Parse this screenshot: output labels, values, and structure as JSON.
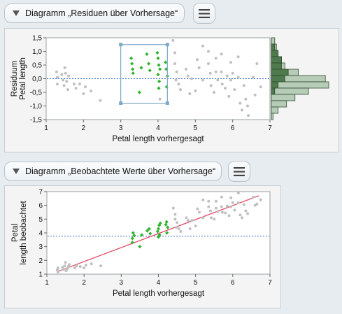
{
  "top": {
    "title": "Diagramm „Residuen über Vorhersage“",
    "menu_icon": "hamburger-icon",
    "collapse_icon": "triangle-down-icon"
  },
  "bottom": {
    "title": "Diagramm „Beobachtete Werte über Vorhersage“",
    "menu_icon": "hamburger-icon",
    "collapse_icon": "triangle-down-icon"
  },
  "colors": {
    "selected": "#2db52d",
    "unselected": "#c0c0c0",
    "fit_line": "#e0506a",
    "reference_line": "#3a6fc9",
    "brush": "#7ea8c8",
    "hist_fill": "#b6ccb6",
    "hist_selected": "#4e7a4e"
  },
  "chart_data": [
    {
      "type": "scatter",
      "title": "",
      "xlabel": "Petal length vorhergesagt",
      "ylabel": "Residuum Petal length",
      "xlim": [
        1,
        7
      ],
      "ylim": [
        -1.5,
        1.5
      ],
      "xticks": [
        "1",
        "2",
        "3",
        "4",
        "5",
        "6",
        "7"
      ],
      "yticks": [
        "1,5",
        "1,0",
        "0,5",
        "0,0",
        "-0,5",
        "-1,0",
        "-1,5"
      ],
      "reference_line_y": 0,
      "selection_box": {
        "x": [
          3.0,
          4.25
        ],
        "y": [
          -0.9,
          1.25
        ]
      },
      "series": [
        {
          "name": "selected",
          "points": [
            [
              3.28,
              0.75
            ],
            [
              3.3,
              0.55
            ],
            [
              3.32,
              0.35
            ],
            [
              3.33,
              0.2
            ],
            [
              3.5,
              -0.5
            ],
            [
              3.55,
              0.4
            ],
            [
              3.7,
              0.9
            ],
            [
              3.75,
              0.55
            ],
            [
              3.78,
              0.3
            ],
            [
              3.98,
              0.95
            ],
            [
              4.0,
              0.75
            ],
            [
              4.02,
              0.5
            ],
            [
              4.05,
              0.35
            ],
            [
              4.0,
              0.15
            ],
            [
              4.03,
              -0.1
            ],
            [
              4.02,
              -0.35
            ],
            [
              4.2,
              0.6
            ],
            [
              4.22,
              0.35
            ],
            [
              4.25,
              0.1
            ],
            [
              4.23,
              -0.3
            ]
          ]
        },
        {
          "name": "unselected",
          "points": [
            [
              1.28,
              0.25
            ],
            [
              1.3,
              0.05
            ],
            [
              1.3,
              -0.2
            ],
            [
              1.42,
              0.15
            ],
            [
              1.45,
              -0.05
            ],
            [
              1.48,
              -0.25
            ],
            [
              1.5,
              0.4
            ],
            [
              1.52,
              0.2
            ],
            [
              1.55,
              -0.1
            ],
            [
              1.58,
              -0.4
            ],
            [
              1.6,
              0.1
            ],
            [
              1.75,
              -0.2
            ],
            [
              1.8,
              -0.35
            ],
            [
              1.9,
              -0.2
            ],
            [
              2.0,
              -0.55
            ],
            [
              2.05,
              -0.3
            ],
            [
              2.2,
              -0.45
            ],
            [
              2.45,
              -0.8
            ],
            [
              4.05,
              -0.75
            ],
            [
              4.4,
              1.4
            ],
            [
              4.45,
              0.95
            ],
            [
              4.45,
              0.55
            ],
            [
              4.5,
              0.25
            ],
            [
              4.48,
              -0.05
            ],
            [
              4.55,
              -0.2
            ],
            [
              4.6,
              -0.4
            ],
            [
              4.75,
              0.35
            ],
            [
              4.8,
              0.1
            ],
            [
              4.85,
              -0.55
            ],
            [
              4.9,
              0.0
            ],
            [
              5.0,
              -0.45
            ],
            [
              5.05,
              0.7
            ],
            [
              5.1,
              0.4
            ],
            [
              5.2,
              -0.05
            ],
            [
              5.35,
              1.0
            ],
            [
              5.35,
              0.55
            ],
            [
              5.4,
              0.2
            ],
            [
              5.42,
              -0.25
            ],
            [
              5.5,
              -0.5
            ],
            [
              5.55,
              0.75
            ],
            [
              5.55,
              0.25
            ],
            [
              5.6,
              -0.05
            ],
            [
              5.7,
              0.25
            ],
            [
              5.72,
              -0.2
            ],
            [
              5.8,
              -0.35
            ],
            [
              5.85,
              0.1
            ],
            [
              5.9,
              -0.65
            ],
            [
              5.95,
              -0.05
            ],
            [
              6.0,
              0.2
            ],
            [
              6.05,
              -0.4
            ],
            [
              6.15,
              0.05
            ],
            [
              6.2,
              -0.9
            ],
            [
              6.25,
              -1.15
            ],
            [
              6.3,
              -0.25
            ],
            [
              6.35,
              -0.75
            ],
            [
              6.4,
              -1.0
            ],
            [
              6.42,
              -1.35
            ],
            [
              6.55,
              0.05
            ],
            [
              6.6,
              -0.6
            ],
            [
              6.65,
              0.55
            ],
            [
              6.75,
              -0.3
            ],
            [
              5.2,
              1.2
            ],
            [
              5.7,
              0.9
            ],
            [
              5.95,
              0.6
            ],
            [
              6.15,
              0.8
            ]
          ]
        }
      ],
      "histogram": {
        "bins": [
          "1,5",
          "1,25",
          "1,0",
          "0,75",
          "0,5",
          "0,25",
          "0,0",
          "-0,25",
          "-0,5",
          "-0,75",
          "-1,0",
          "-1,25",
          "-1,5"
        ],
        "counts": [
          2,
          3,
          4,
          6,
          8,
          16,
          32,
          34,
          22,
          14,
          9,
          4,
          1
        ],
        "selected_counts": [
          0,
          1,
          2,
          3,
          3,
          5,
          4,
          2,
          1,
          0,
          0,
          0,
          0
        ]
      }
    },
    {
      "type": "scatter",
      "title": "",
      "xlabel": "Petal length vorhergesagt",
      "ylabel": "Petal length beobachtet",
      "xlim": [
        1,
        7
      ],
      "ylim": [
        1,
        7
      ],
      "xticks": [
        "1",
        "2",
        "3",
        "4",
        "5",
        "6",
        "7"
      ],
      "yticks": [
        "7",
        "6",
        "5",
        "4",
        "3",
        "2",
        "1"
      ],
      "reference_line_y": 3.76,
      "fit_line": [
        [
          1.3,
          1.2
        ],
        [
          6.7,
          6.7
        ]
      ],
      "series": [
        {
          "name": "selected",
          "points": [
            [
              3.3,
              3.3
            ],
            [
              3.3,
              3.6
            ],
            [
              3.35,
              3.8
            ],
            [
              3.32,
              4.0
            ],
            [
              3.5,
              3.0
            ],
            [
              3.55,
              3.85
            ],
            [
              3.7,
              4.15
            ],
            [
              3.75,
              4.3
            ],
            [
              3.78,
              3.95
            ],
            [
              3.98,
              4.1
            ],
            [
              4.0,
              4.3
            ],
            [
              4.02,
              4.55
            ],
            [
              4.05,
              4.7
            ],
            [
              4.0,
              3.7
            ],
            [
              4.03,
              3.85
            ],
            [
              4.2,
              4.6
            ],
            [
              4.22,
              4.8
            ],
            [
              4.25,
              4.4
            ],
            [
              4.23,
              4.0
            ]
          ]
        },
        {
          "name": "unselected",
          "points": [
            [
              1.28,
              1.3
            ],
            [
              1.3,
              1.45
            ],
            [
              1.3,
              1.15
            ],
            [
              1.42,
              1.5
            ],
            [
              1.45,
              1.35
            ],
            [
              1.48,
              1.6
            ],
            [
              1.5,
              1.85
            ],
            [
              1.52,
              1.25
            ],
            [
              1.55,
              1.4
            ],
            [
              1.58,
              1.55
            ],
            [
              1.6,
              1.7
            ],
            [
              1.75,
              1.45
            ],
            [
              1.8,
              1.6
            ],
            [
              1.9,
              1.55
            ],
            [
              2.0,
              1.45
            ],
            [
              2.05,
              1.65
            ],
            [
              2.2,
              1.75
            ],
            [
              2.45,
              1.6
            ],
            [
              4.4,
              5.8
            ],
            [
              4.45,
              5.35
            ],
            [
              4.45,
              5.0
            ],
            [
              4.5,
              4.75
            ],
            [
              4.48,
              4.4
            ],
            [
              4.55,
              4.3
            ],
            [
              4.6,
              4.1
            ],
            [
              4.75,
              5.1
            ],
            [
              4.8,
              4.9
            ],
            [
              4.85,
              4.3
            ],
            [
              4.9,
              4.9
            ],
            [
              5.0,
              4.5
            ],
            [
              5.05,
              5.75
            ],
            [
              5.1,
              5.5
            ],
            [
              5.2,
              5.1
            ],
            [
              5.35,
              6.3
            ],
            [
              5.35,
              5.9
            ],
            [
              5.4,
              5.6
            ],
            [
              5.42,
              5.1
            ],
            [
              5.5,
              5.0
            ],
            [
              5.55,
              6.3
            ],
            [
              5.55,
              5.8
            ],
            [
              5.6,
              5.55
            ],
            [
              5.7,
              5.9
            ],
            [
              5.72,
              5.5
            ],
            [
              5.8,
              5.45
            ],
            [
              5.85,
              5.95
            ],
            [
              5.9,
              5.25
            ],
            [
              5.95,
              5.9
            ],
            [
              6.0,
              6.2
            ],
            [
              6.05,
              5.65
            ],
            [
              6.15,
              6.2
            ],
            [
              6.2,
              5.3
            ],
            [
              6.25,
              5.1
            ],
            [
              6.3,
              6.05
            ],
            [
              6.35,
              5.6
            ],
            [
              6.4,
              5.4
            ],
            [
              6.55,
              6.6
            ],
            [
              6.6,
              6.0
            ],
            [
              6.65,
              6.1
            ],
            [
              6.75,
              6.4
            ],
            [
              5.2,
              6.4
            ],
            [
              5.7,
              6.6
            ],
            [
              5.95,
              6.55
            ],
            [
              6.15,
              6.9
            ]
          ]
        }
      ]
    }
  ]
}
